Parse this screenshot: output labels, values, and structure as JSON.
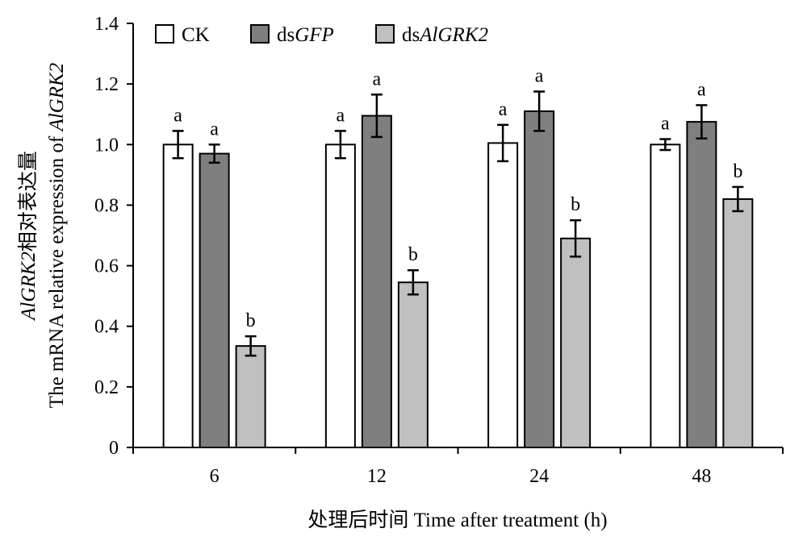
{
  "chart_data": {
    "type": "bar",
    "title": "",
    "xlabel": "处理后时间 Time  after treatment (h)",
    "ylabel_line1_italic": "AlGRK2",
    "ylabel_line1_rest": "相对表达量",
    "ylabel_line2_prefix": "The mRNA relative expression of ",
    "ylabel_line2_italic": "AlGRK2",
    "categories": [
      "6",
      "12",
      "24",
      "48"
    ],
    "ylim": [
      0,
      1.4
    ],
    "yticks": [
      "0",
      "0.2",
      "0.4",
      "0.6",
      "0.8",
      "1.0",
      "1.2",
      "1.4"
    ],
    "grid": false,
    "legend_position": "top-left",
    "series": [
      {
        "name": "CK",
        "legend_prefix": "",
        "legend_italic": "CK",
        "legend_italic_flag": false,
        "color": "#ffffff",
        "values": [
          1.0,
          1.0,
          1.005,
          1.0
        ],
        "errors": [
          0.045,
          0.045,
          0.06,
          0.018
        ],
        "letters": [
          "a",
          "a",
          "a",
          "a"
        ]
      },
      {
        "name": "dsGFP",
        "legend_prefix": "ds",
        "legend_italic": "GFP",
        "legend_italic_flag": true,
        "color": "#7f7f7f",
        "values": [
          0.97,
          1.095,
          1.11,
          1.075
        ],
        "errors": [
          0.03,
          0.07,
          0.065,
          0.055
        ],
        "letters": [
          "a",
          "a",
          "a",
          "a"
        ]
      },
      {
        "name": "dsAlGRK2",
        "legend_prefix": "ds",
        "legend_italic": "AlGRK2",
        "legend_italic_flag": true,
        "color": "#c0c0c0",
        "values": [
          0.335,
          0.545,
          0.69,
          0.82
        ],
        "errors": [
          0.032,
          0.04,
          0.06,
          0.04
        ],
        "letters": [
          "b",
          "b",
          "b",
          "b"
        ]
      }
    ]
  }
}
